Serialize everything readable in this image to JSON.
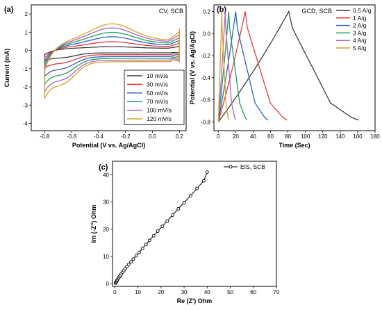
{
  "chart_data": [
    {
      "panel": "(a)",
      "type": "line",
      "annotation": "CV, SCB",
      "xlabel": "Potential (V vs. Ag/AgCl)",
      "ylabel": "Current (mA)",
      "xlim": [
        -0.9,
        0.25
      ],
      "ylim": [
        -4.4,
        2.5
      ],
      "xticks": [
        "-0.8",
        "-0.6",
        "-0.4",
        "-0.2",
        "0.0",
        "0.2"
      ],
      "yticks": [
        "-4",
        "-3",
        "-2",
        "-1",
        "0",
        "1",
        "2"
      ],
      "legend_position": "bottom-right",
      "series": [
        {
          "name": "10 mV/s",
          "color": "#3a3a3a",
          "amp": 0.22,
          "peak": 0.15,
          "end": 0.25
        },
        {
          "name": "30 mV/s",
          "color": "#e03a3a",
          "amp": 0.38,
          "peak": 0.45,
          "end": 0.45
        },
        {
          "name": "50 mV/s",
          "color": "#2a62c8",
          "amp": 0.55,
          "peak": 0.75,
          "end": 0.6
        },
        {
          "name": "70 mV/s",
          "color": "#1e9e5a",
          "amp": 0.72,
          "peak": 1.0,
          "end": 0.75
        },
        {
          "name": "100 mV/s",
          "color": "#b060c8",
          "amp": 0.88,
          "peak": 1.25,
          "end": 0.95
        },
        {
          "name": "120 mV/s",
          "color": "#d9a21e",
          "amp": 1.02,
          "peak": 1.5,
          "end": 1.15
        }
      ]
    },
    {
      "panel": "(b)",
      "type": "line",
      "annotation": "GCD, SCB",
      "xlabel": "Time (Sec)",
      "ylabel": "Potential (V vs. Ag/AgCl)",
      "xlim": [
        -5,
        180
      ],
      "ylim": [
        -0.88,
        0.26
      ],
      "xticks": [
        "0",
        "20",
        "40",
        "60",
        "80",
        "100",
        "120",
        "140",
        "160",
        "180"
      ],
      "yticks": [
        "-0.8",
        "-0.6",
        "-0.4",
        "-0.2",
        "0.0",
        "0.2"
      ],
      "legend_position": "top-right",
      "series": [
        {
          "name": "0.5 A/g",
          "color": "#3a3a3a",
          "t_charge": 81,
          "t_end": 161
        },
        {
          "name": "1 A/g",
          "color": "#e03a3a",
          "t_charge": 31,
          "t_end": 79
        },
        {
          "name": "2 A/g",
          "color": "#2a62c8",
          "t_charge": 20,
          "t_end": 57
        },
        {
          "name": "3 A/g",
          "color": "#1e9e5a",
          "t_charge": 12,
          "t_end": 33
        },
        {
          "name": "4 A/g",
          "color": "#b060c8",
          "t_charge": 8,
          "t_end": 20
        },
        {
          "name": "5 A/g",
          "color": "#d9a21e",
          "t_charge": 4,
          "t_end": 12
        }
      ]
    },
    {
      "panel": "(c)",
      "type": "scatter",
      "xlabel": "Re (Z') Ohm",
      "ylabel": "Im (-Z'') Ohm",
      "xlim": [
        -1,
        70
      ],
      "ylim": [
        -1,
        45
      ],
      "xticks": [
        "0",
        "10",
        "20",
        "30",
        "40",
        "50",
        "60",
        "70"
      ],
      "yticks": [
        "0",
        "10",
        "20",
        "30",
        "40"
      ],
      "legend_position": "top-right",
      "series": [
        {
          "name": "EIS, SCB",
          "color": "#000000",
          "x": [
            0.3,
            0.5,
            0.7,
            0.9,
            1.1,
            1.4,
            1.7,
            2.0,
            2.4,
            2.8,
            3.3,
            3.9,
            4.5,
            5.2,
            6.0,
            7.0,
            8.0,
            9.3,
            10.6,
            12.0,
            13.5,
            15.0,
            16.8,
            18.6,
            20.6,
            22.7,
            25.0,
            27.5,
            30.0,
            32.8,
            35.6,
            38.5,
            40.0
          ],
          "y": [
            0.2,
            0.5,
            0.8,
            1.1,
            1.4,
            1.8,
            2.2,
            2.6,
            3.1,
            3.6,
            4.2,
            4.8,
            5.5,
            6.3,
            7.1,
            8.0,
            9.0,
            10.3,
            11.5,
            13.0,
            14.4,
            15.9,
            17.6,
            19.3,
            21.1,
            23.0,
            25.2,
            27.5,
            29.8,
            32.3,
            35.0,
            37.8,
            41.0
          ]
        }
      ]
    }
  ]
}
